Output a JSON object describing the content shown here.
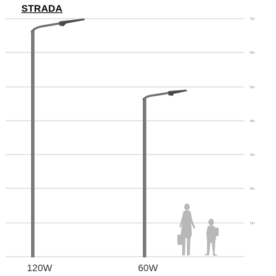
{
  "title": "STRADA",
  "scale": {
    "ticks": [
      "7m",
      "6m",
      "5m",
      "4m",
      "3m",
      "2m",
      "1m"
    ]
  },
  "poles": [
    {
      "label": "120W"
    },
    {
      "label": "60W"
    }
  ],
  "colors": {
    "pole": "#7a7a7a",
    "arm": "#707070",
    "luminaire": "#4a4a4a",
    "figure": "#b8b8b8",
    "grid": "#cfcfcf"
  }
}
